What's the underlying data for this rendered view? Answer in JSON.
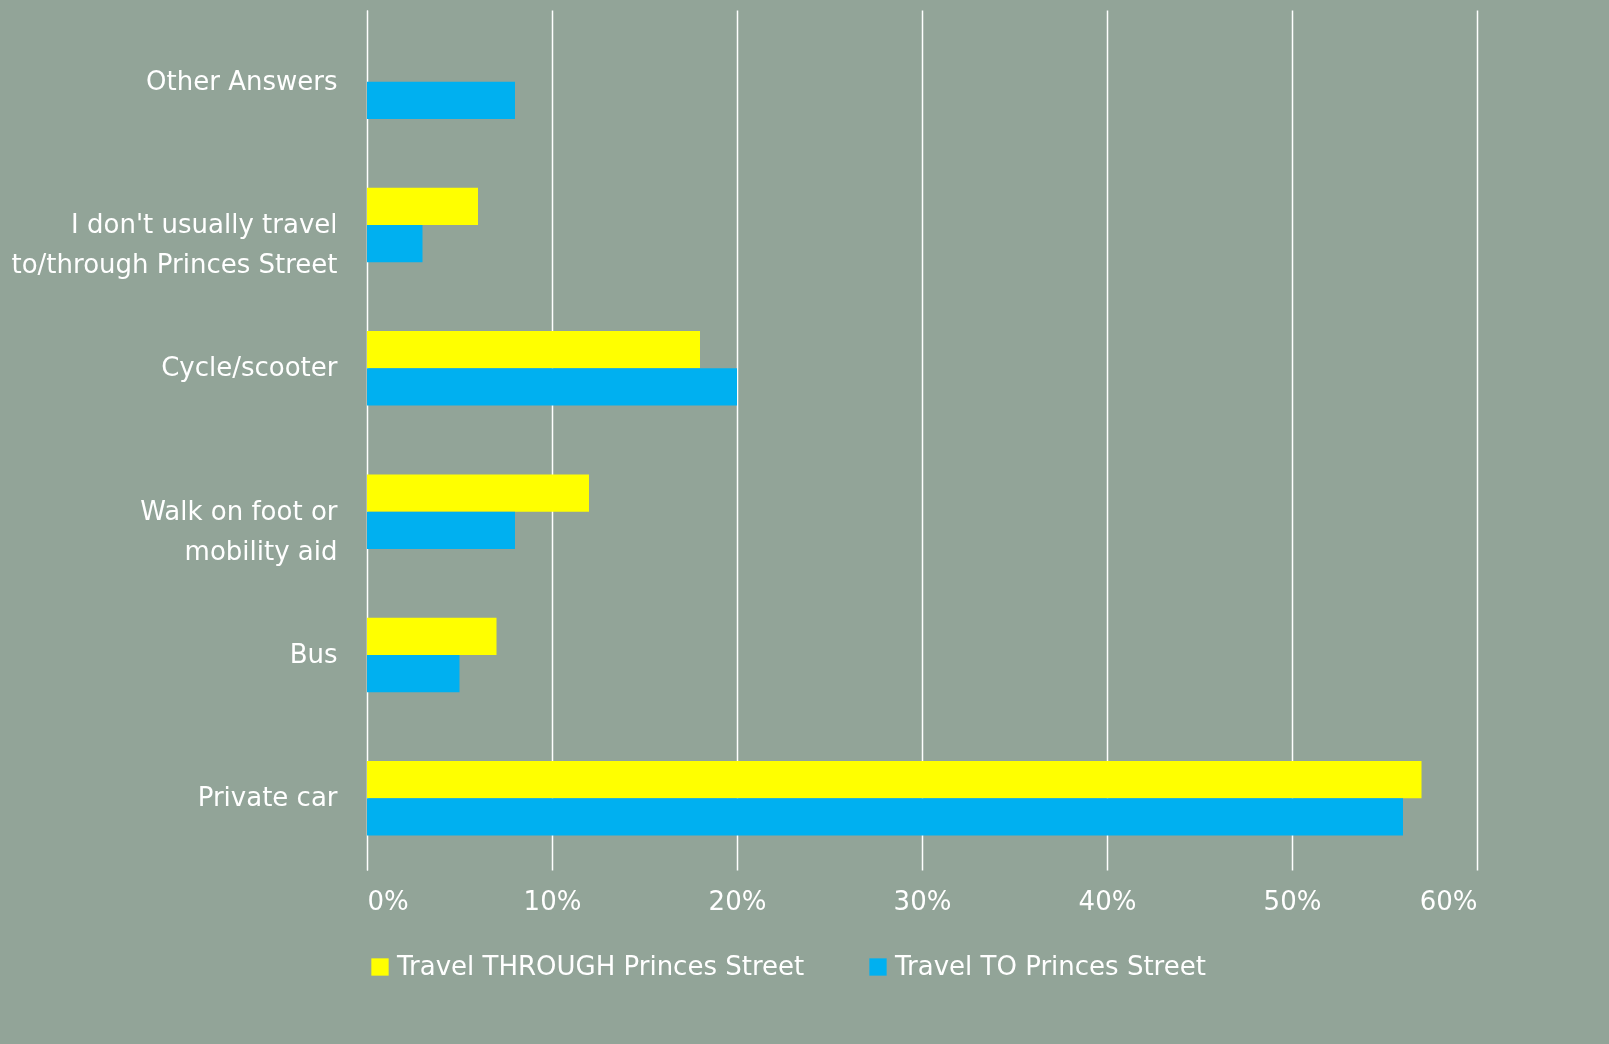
{
  "chart_data": {
    "type": "bar",
    "orientation": "horizontal",
    "categories": [
      "Other Answers",
      "I don't usually travel to/through Princes Street",
      "Cycle/scooter",
      "Walk on foot or mobility aid",
      "Bus",
      "Private car"
    ],
    "series": [
      {
        "name": "Travel THROUGH Princes Street",
        "color": "#ffff00",
        "values": [
          null,
          6,
          18,
          12,
          7,
          57
        ]
      },
      {
        "name": "Travel TO Princes Street",
        "color": "#00b0f0",
        "values": [
          8,
          3,
          20,
          8,
          5,
          56
        ]
      }
    ],
    "xlim": [
      0,
      60
    ],
    "xticks": [
      {
        "value": 0,
        "label": "0%"
      },
      {
        "value": 10,
        "label": "10%"
      },
      {
        "value": 20,
        "label": "20%"
      },
      {
        "value": 30,
        "label": "30%"
      },
      {
        "value": 40,
        "label": "40%"
      },
      {
        "value": 50,
        "label": "50%"
      },
      {
        "value": 60,
        "label": "60%"
      }
    ],
    "grid": "x",
    "legend": "bottom"
  }
}
